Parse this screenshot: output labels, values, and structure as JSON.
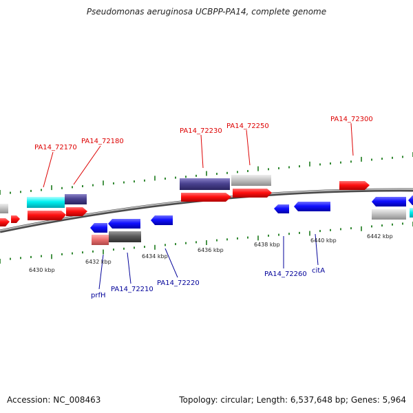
{
  "title": "Pseudomonas aeruginosa UCBPP-PA14, complete genome",
  "footer": {
    "accession": "Accession: NC_008463",
    "summary": "Topology: circular; Length: 6,537,648 bp; Genes: 5,964"
  },
  "colors": {
    "backbone": "#888888",
    "ticks": "#1a7a1a",
    "forward_label": "#dd0000",
    "reverse_label": "#000099"
  },
  "scale_labels": [
    "6430 kbp",
    "6432 kbp",
    "6434 kbp",
    "6436 kbp",
    "6438 kbp",
    "6440 kbp",
    "6442 kbp"
  ],
  "forward_genes": [
    {
      "label": "PA14_72170"
    },
    {
      "label": "PA14_72180"
    },
    {
      "label": "PA14_72230"
    },
    {
      "label": "PA14_72250"
    },
    {
      "label": "PA14_72300"
    }
  ],
  "reverse_genes": [
    {
      "label": "prfH"
    },
    {
      "label": "PA14_72210"
    },
    {
      "label": "PA14_72220"
    },
    {
      "label": "PA14_72260"
    },
    {
      "label": "citA"
    }
  ]
}
